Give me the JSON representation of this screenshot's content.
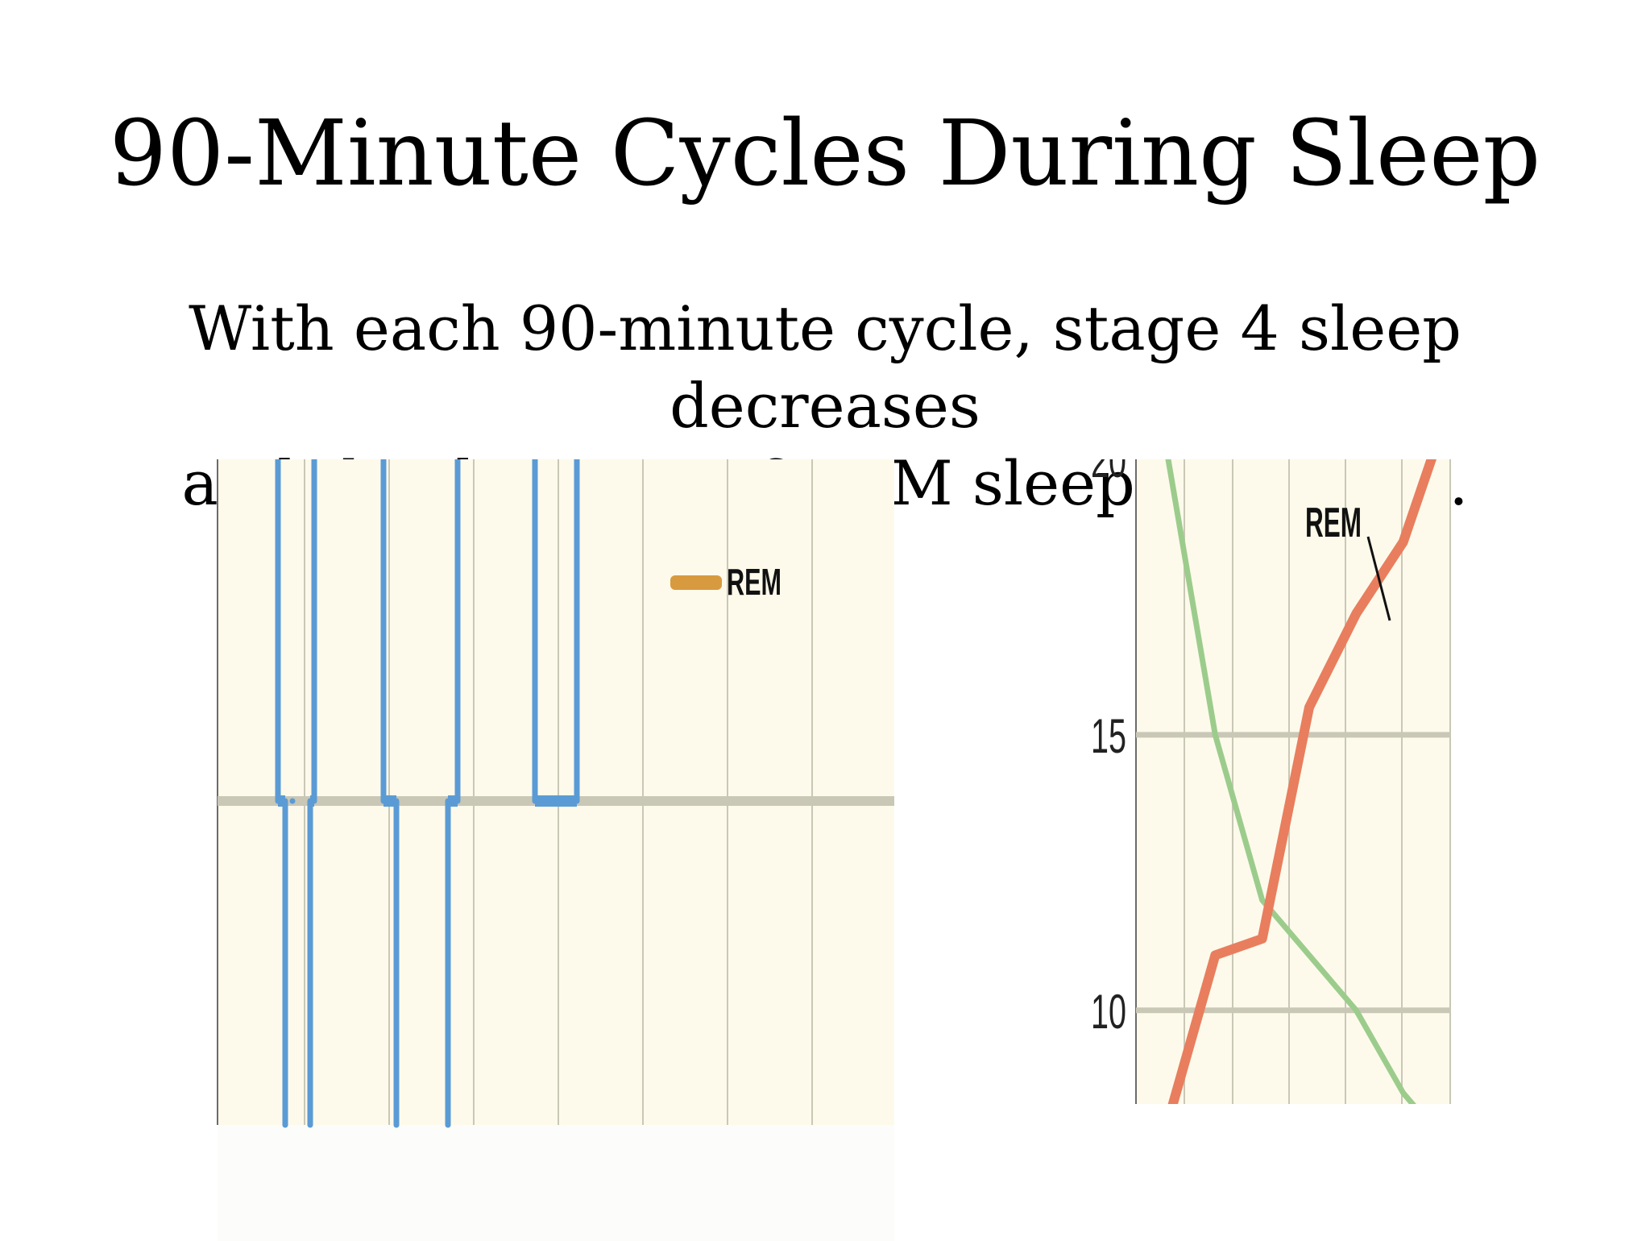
{
  "slide": {
    "title": "90-Minute Cycles During Sleep",
    "subtitle_line1": "With each 90-minute cycle, stage 4 sleep decreases",
    "subtitle_line2": "and the duration of REM sleep increases."
  },
  "chart_data": [
    {
      "type": "line",
      "legend": [
        "REM"
      ],
      "colors": {
        "background": "#fdfaeb",
        "trace": "#5b9bd5",
        "rem": "#d89a3e",
        "grid": "#c9c7b6"
      }
    },
    {
      "type": "line",
      "ylim": [
        9,
        20
      ],
      "yticks": [
        "10",
        "15",
        "20"
      ],
      "annotations": [
        "REM"
      ],
      "series": [
        {
          "color": "#9ccc8c",
          "x": [
            0,
            1,
            2,
            3,
            4,
            5,
            6
          ],
          "y": [
            20,
            15,
            12,
            11,
            10,
            8.5,
            7.5
          ]
        },
        {
          "color": "#e87e5e",
          "x": [
            0,
            1,
            2,
            3,
            4,
            5,
            6
          ],
          "y": [
            8,
            11,
            11.3,
            15.5,
            17.2,
            18.5,
            21
          ]
        }
      ],
      "colors": {
        "background": "#fdfaeb",
        "grid": "#c9c7b6"
      }
    }
  ]
}
